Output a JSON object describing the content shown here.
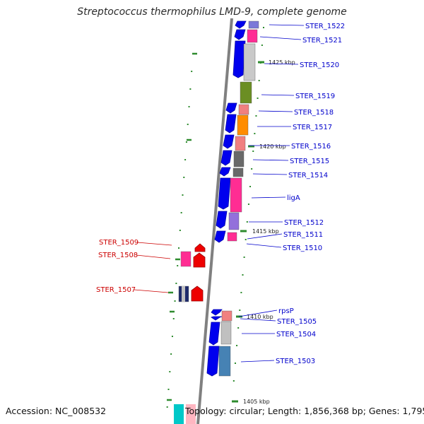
{
  "title": "Streptococcus thermophilus LMD-9, complete genome",
  "accession_text": "Accession: NC_008532",
  "topology_text": "Topology: circular; Length: 1,856,368 bp; Genes: 1,795",
  "colors": {
    "backbone": "#808080",
    "forward_label": "#0000cc",
    "reverse_label": "#cc0000",
    "tick": "#2e8b2e",
    "forward_gene": "#0000ee",
    "reverse_gene": "#ee0000"
  },
  "kbp_markers": [
    "1425 kbp",
    "1420 kbp",
    "1415 kbp",
    "1410 kbp",
    "1405 kbp"
  ],
  "forward_labels": [
    "STER_1522",
    "STER_1521",
    "STER_1520",
    "STER_1519",
    "STER_1518",
    "STER_1517",
    "STER_1516",
    "STER_1515",
    "STER_1514",
    "ligA",
    "STER_1512",
    "STER_1511",
    "STER_1510",
    "rpsP",
    "STER_1505",
    "STER_1504",
    "STER_1503"
  ],
  "reverse_labels": [
    "STER_1509",
    "STER_1508",
    "STER_1507"
  ]
}
